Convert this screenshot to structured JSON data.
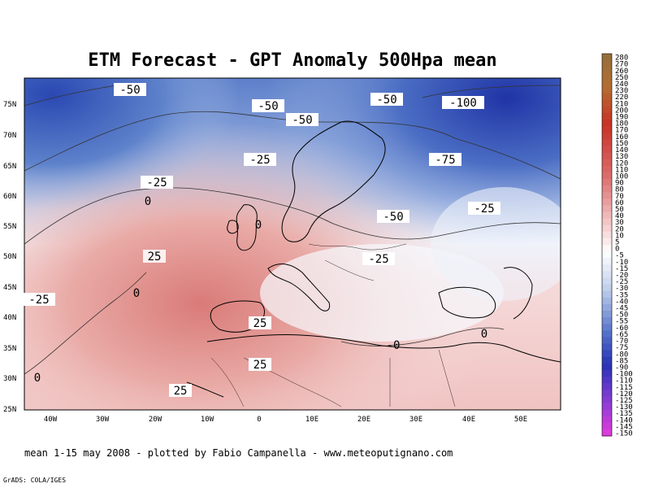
{
  "title": "ETM Forecast - GPT Anomaly 500Hpa mean",
  "credit": "mean 1-15 may 2008 - plotted by Fabio Campanella - www.meteoputignano.com",
  "grads": "GrADS: COLA/IGES",
  "lat_ticks": [
    "75N",
    "70N",
    "65N",
    "60N",
    "55N",
    "50N",
    "45N",
    "40N",
    "35N",
    "30N",
    "25N"
  ],
  "lon_ticks": [
    "40W",
    "30W",
    "20W",
    "10W",
    "0",
    "10E",
    "20E",
    "30E",
    "40E",
    "50E"
  ],
  "contour_labels": [
    "-50",
    "-50",
    "-50",
    "-50",
    "-100",
    "-25",
    "-25",
    "-75",
    "-25",
    "0",
    "0",
    "-50",
    "25",
    "-25",
    "-25",
    "0",
    "25",
    "0",
    "25",
    "0",
    "-0",
    "25"
  ],
  "colorbar_labels": [
    "280",
    "270",
    "260",
    "250",
    "240",
    "230",
    "220",
    "210",
    "200",
    "190",
    "180",
    "170",
    "160",
    "150",
    "140",
    "130",
    "120",
    "110",
    "100",
    "90",
    "80",
    "70",
    "60",
    "50",
    "40",
    "30",
    "20",
    "10",
    "5",
    "0",
    "-5",
    "-10",
    "-15",
    "-20",
    "-25",
    "-30",
    "-35",
    "-40",
    "-45",
    "-50",
    "-55",
    "-60",
    "-65",
    "-70",
    "-75",
    "-80",
    "-85",
    "-90",
    "-100",
    "-110",
    "-115",
    "-120",
    "-125",
    "-130",
    "-135",
    "-140",
    "-145",
    "-150"
  ],
  "colors": {
    "strong_negative": "#2a3fa8",
    "negative": "#6f8fd0",
    "neutral": "#ffffff",
    "positive": "#e6a9a6",
    "strong_positive": "#cc6a6a"
  }
}
